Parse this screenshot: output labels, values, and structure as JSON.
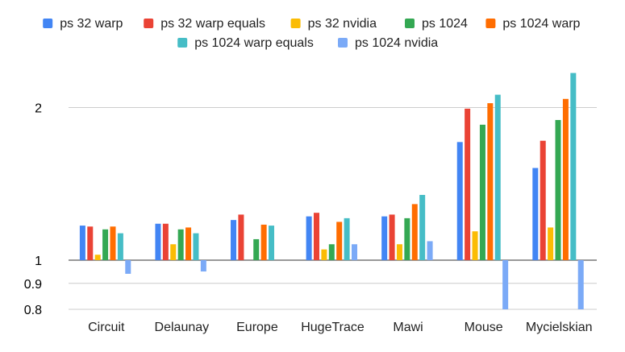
{
  "chart_data": {
    "type": "bar",
    "scale": "log",
    "grid": true,
    "legend_position": "top",
    "categories": [
      "Circuit",
      "Delaunay",
      "Europe",
      "HugeTrace",
      "Mawi",
      "Mouse",
      "Mycielskian"
    ],
    "yticks": [
      {
        "value": 0.8,
        "label": "0.8"
      },
      {
        "value": 0.9,
        "label": "0.9"
      },
      {
        "value": 1,
        "label": "1"
      },
      {
        "value": 2,
        "label": "2"
      }
    ],
    "ylim": [
      0.8,
      2.4
    ],
    "baseline": 1,
    "series": [
      {
        "name": "ps 32 warp",
        "color": "#4285F4",
        "values": [
          1.17,
          1.18,
          1.2,
          1.22,
          1.22,
          1.71,
          1.52
        ]
      },
      {
        "name": "ps 32 warp equals",
        "color": "#EA4335",
        "values": [
          1.165,
          1.18,
          1.23,
          1.24,
          1.23,
          1.99,
          1.72
        ]
      },
      {
        "name": "ps 32 nvidia",
        "color": "#FBBC04",
        "values": [
          1.025,
          1.075,
          null,
          1.05,
          1.075,
          1.14,
          1.16
        ]
      },
      {
        "name": "ps 1024",
        "color": "#34A853",
        "values": [
          1.15,
          1.15,
          1.1,
          1.075,
          1.21,
          1.85,
          1.89
        ]
      },
      {
        "name": "ps 1024 warp",
        "color": "#FF6D01",
        "values": [
          1.165,
          1.16,
          1.175,
          1.19,
          1.29,
          2.04,
          2.08
        ]
      },
      {
        "name": "ps 1024 warp equals",
        "color": "#46BDC6",
        "values": [
          1.13,
          1.13,
          1.17,
          1.21,
          1.345,
          2.12,
          2.34
        ]
      },
      {
        "name": "ps 1024 nvidia",
        "color": "#7BAAF7",
        "values": [
          0.94,
          0.95,
          null,
          1.075,
          1.09,
          0.8,
          0.8
        ]
      }
    ]
  }
}
